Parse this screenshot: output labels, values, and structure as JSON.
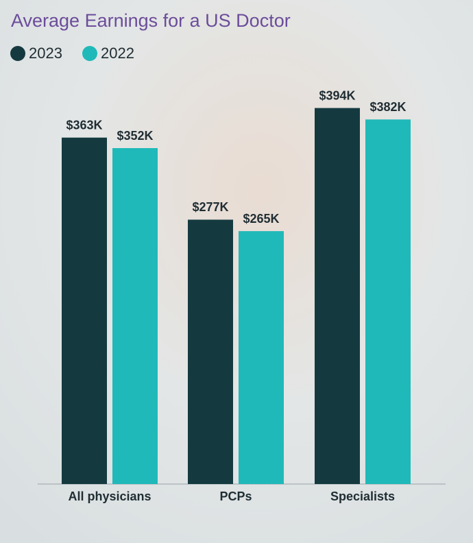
{
  "chart_data": {
    "type": "bar",
    "title": "Average Earnings for a US Doctor",
    "categories": [
      "All physicians",
      "PCPs",
      "Specialists"
    ],
    "series": [
      {
        "name": "2023",
        "color": "#143a40",
        "values": [
          363,
          277,
          394
        ],
        "value_labels": [
          "$363K",
          "$277K",
          "$394K"
        ]
      },
      {
        "name": "2022",
        "color": "#20b9b9",
        "values": [
          352,
          265,
          382
        ],
        "value_labels": [
          "$352K",
          "$265K",
          "$382K"
        ]
      }
    ]
  }
}
